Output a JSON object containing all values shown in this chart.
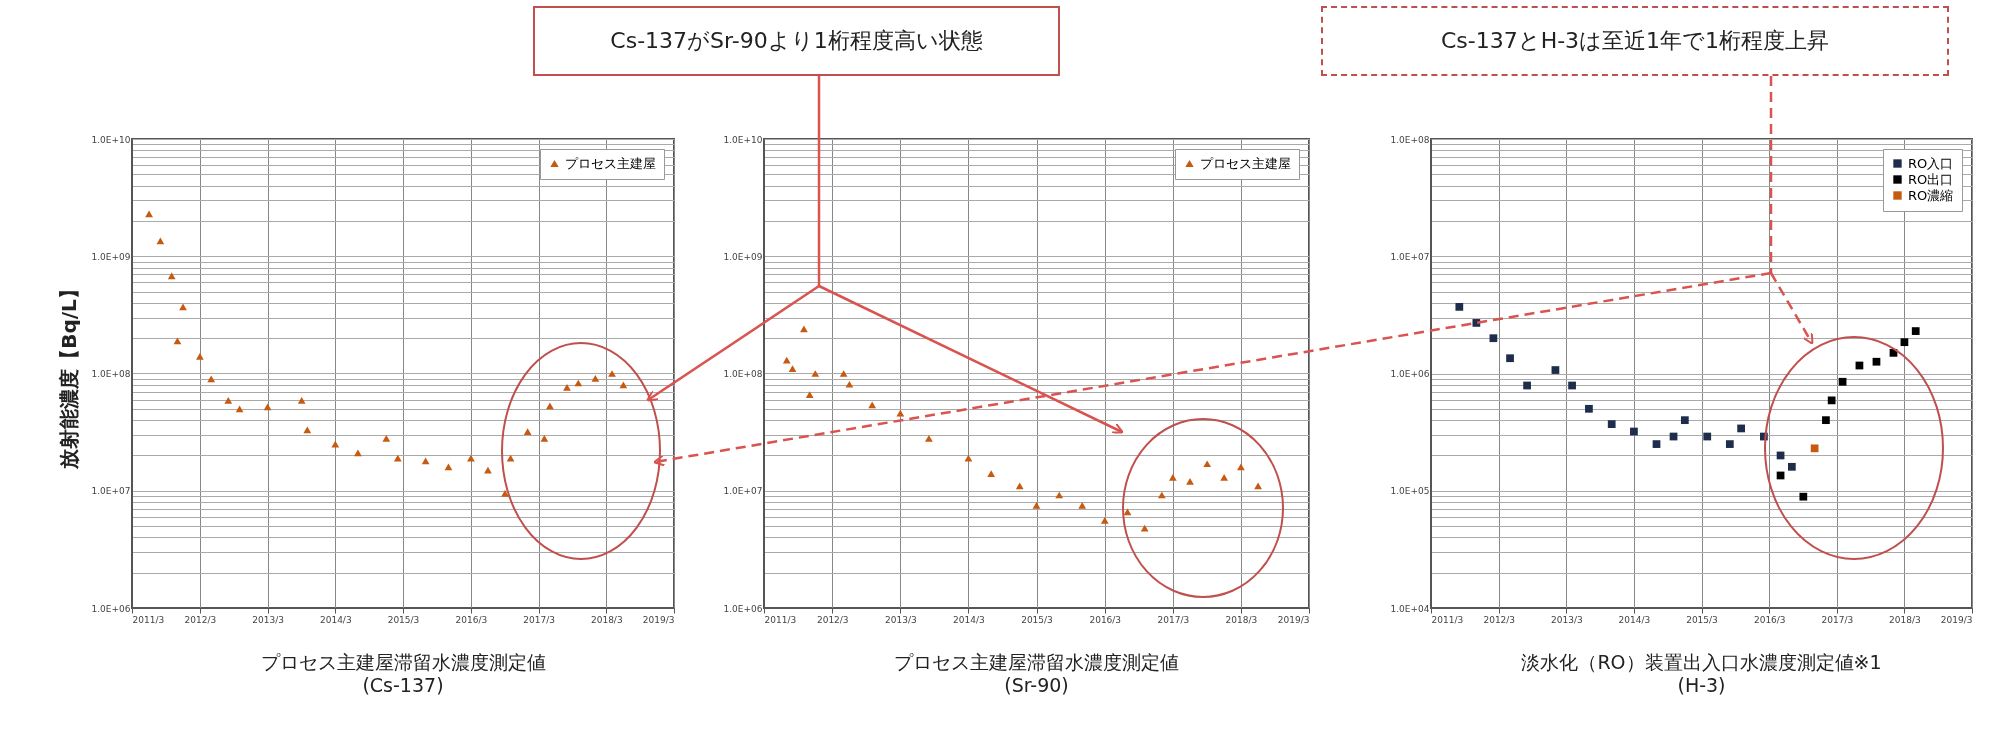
{
  "chart_data": [
    {
      "type": "scatter",
      "title": "プロセス主建屋滞留水濃度測定値",
      "subtitle": "(Cs-137)",
      "ylabel": "放射能濃度【Bq/L】",
      "annotations": [
        "Cs-137がSr-90より1桁程度高い状態"
      ],
      "log": true,
      "grid": true,
      "legend": "top right",
      "marker": "triangle",
      "xlim": [
        "2011-03",
        "2019-03"
      ],
      "xticks": [
        {
          "value": "2011-03",
          "label": "2011/3"
        },
        {
          "value": "2012-03",
          "label": "2012/3"
        },
        {
          "value": "2013-03",
          "label": "2013/3"
        },
        {
          "value": "2014-03",
          "label": "2014/3"
        },
        {
          "value": "2015-03",
          "label": "2015/3"
        },
        {
          "value": "2016-03",
          "label": "2016/3"
        },
        {
          "value": "2017-03",
          "label": "2017/3"
        },
        {
          "value": "2018-03",
          "label": "2018/3"
        },
        {
          "value": "2019-03",
          "label": "2019/3"
        }
      ],
      "ylim": [
        1000000,
        10000000000
      ],
      "yticks": [
        {
          "value": 1000000,
          "label": "1.0E+06"
        },
        {
          "value": 10000000,
          "label": "1.0E+07"
        },
        {
          "value": 100000000,
          "label": "1.0E+08"
        },
        {
          "value": 1000000000,
          "label": "1.0E+09"
        },
        {
          "value": 10000000000,
          "label": "1.0E+10"
        }
      ],
      "x": [
        "2011-06",
        "2011-08",
        "2011-10",
        "2011-12",
        "2011-11",
        "2012-03",
        "2012-05",
        "2012-08",
        "2012-10",
        "2013-03",
        "2013-09",
        "2013-10",
        "2014-03",
        "2014-07",
        "2014-12",
        "2015-02",
        "2015-07",
        "2015-11",
        "2016-03",
        "2016-06",
        "2016-09",
        "2016-10",
        "2017-01",
        "2017-04",
        "2017-05",
        "2017-08",
        "2017-10",
        "2018-01",
        "2018-04",
        "2018-06"
      ],
      "series": [
        {
          "name": "プロセス主建屋",
          "color": "#c65a11",
          "values": [
            2300000000,
            1350000000,
            680000000,
            370000000,
            190000000,
            140000000,
            90000000,
            59000000,
            50000000,
            52000000,
            59000000,
            33000000,
            25000000,
            21000000,
            28000000,
            19000000,
            18000000,
            16000000,
            19000000,
            15000000,
            9500000,
            19000000,
            32000000,
            28000000,
            53000000,
            76000000,
            83000000,
            91000000,
            100000000,
            80000000
          ]
        }
      ]
    },
    {
      "type": "scatter",
      "title": "プロセス主建屋滞留水濃度測定値",
      "subtitle": "(Sr-90)",
      "log": true,
      "grid": true,
      "legend": "top right",
      "marker": "triangle",
      "xlim": [
        "2011-03",
        "2019-03"
      ],
      "xticks": [
        {
          "value": "2011-03",
          "label": "2011/3"
        },
        {
          "value": "2012-03",
          "label": "2012/3"
        },
        {
          "value": "2013-03",
          "label": "2013/3"
        },
        {
          "value": "2014-03",
          "label": "2014/3"
        },
        {
          "value": "2015-03",
          "label": "2015/3"
        },
        {
          "value": "2016-03",
          "label": "2016/3"
        },
        {
          "value": "2017-03",
          "label": "2017/3"
        },
        {
          "value": "2018-03",
          "label": "2018/3"
        },
        {
          "value": "2019-03",
          "label": "2019/3"
        }
      ],
      "ylim": [
        1000000,
        10000000000
      ],
      "yticks": [
        {
          "value": 1000000,
          "label": "1.0E+06"
        },
        {
          "value": 10000000,
          "label": "1.0E+07"
        },
        {
          "value": 100000000,
          "label": "1.0E+08"
        },
        {
          "value": 1000000000,
          "label": "1.0E+09"
        },
        {
          "value": 10000000000,
          "label": "1.0E+10"
        }
      ],
      "x": [
        "2011-10",
        "2011-07",
        "2011-08",
        "2011-11",
        "2011-12",
        "2012-05",
        "2012-06",
        "2012-10",
        "2013-03",
        "2013-08",
        "2014-03",
        "2014-07",
        "2014-12",
        "2015-03",
        "2015-07",
        "2015-11",
        "2016-03",
        "2016-07",
        "2016-10",
        "2017-01",
        "2017-03",
        "2017-06",
        "2017-09",
        "2017-12",
        "2018-03",
        "2018-06"
      ],
      "series": [
        {
          "name": "プロセス主建屋",
          "color": "#c65a11",
          "values": [
            240000000,
            130000000,
            110000000,
            66000000,
            100000000,
            100000000,
            81000000,
            54000000,
            46000000,
            28000000,
            19000000,
            14000000,
            11000000,
            7500000,
            9200000,
            7500000,
            5600000,
            6600000,
            4800000,
            9200000,
            13000000,
            12000000,
            17000000,
            13000000,
            16000000,
            11000000
          ]
        }
      ]
    },
    {
      "type": "scatter",
      "title": "淡水化（RO）装置出入口水濃度測定値※1",
      "subtitle": "(H-3)",
      "annotations": [
        "Cs-137とH-3は至近1年で1桁程度上昇"
      ],
      "log": true,
      "grid": true,
      "legend": "top right",
      "marker": "square",
      "xlim": [
        "2011-03",
        "2019-03"
      ],
      "xticks": [
        {
          "value": "2011-03",
          "label": "2011/3"
        },
        {
          "value": "2012-03",
          "label": "2012/3"
        },
        {
          "value": "2013-03",
          "label": "2013/3"
        },
        {
          "value": "2014-03",
          "label": "2014/3"
        },
        {
          "value": "2015-03",
          "label": "2015/3"
        },
        {
          "value": "2016-03",
          "label": "2016/3"
        },
        {
          "value": "2017-03",
          "label": "2017/3"
        },
        {
          "value": "2018-03",
          "label": "2018/3"
        },
        {
          "value": "2019-03",
          "label": "2019/3"
        }
      ],
      "ylim": [
        10000,
        100000000
      ],
      "yticks": [
        {
          "value": 10000,
          "label": "1.0E+04"
        },
        {
          "value": 100000,
          "label": "1.0E+05"
        },
        {
          "value": 1000000,
          "label": "1.0E+06"
        },
        {
          "value": 10000000,
          "label": "1.0E+07"
        },
        {
          "value": 100000000,
          "label": "1.0E+08"
        }
      ],
      "series": [
        {
          "name": "RO入口",
          "color": "#1f2d4d",
          "x": [
            "2011-08",
            "2011-11",
            "2012-02",
            "2012-05",
            "2012-08",
            "2013-01",
            "2013-04",
            "2013-07",
            "2013-11",
            "2014-03",
            "2014-07",
            "2014-10",
            "2014-12",
            "2015-04",
            "2015-08",
            "2015-10",
            "2016-02",
            "2016-05",
            "2016-07"
          ],
          "values": [
            3700000,
            2700000,
            2000000,
            1350000,
            790000,
            1070000,
            790000,
            500000,
            370000,
            320000,
            250000,
            290000,
            400000,
            290000,
            250000,
            340000,
            290000,
            200000,
            160000
          ]
        },
        {
          "name": "RO出口",
          "color": "#000000",
          "x": [
            "2016-05",
            "2016-09",
            "2017-01",
            "2017-02",
            "2017-04",
            "2017-07",
            "2017-10",
            "2018-01",
            "2018-03",
            "2018-05"
          ],
          "values": [
            135000,
            89000,
            400000,
            590000,
            850000,
            1170000,
            1260000,
            1500000,
            1850000,
            2300000
          ]
        },
        {
          "name": "RO濃縮",
          "color": "#c65a11",
          "x": [
            "2016-11"
          ],
          "values": [
            230000
          ]
        }
      ]
    }
  ]
}
